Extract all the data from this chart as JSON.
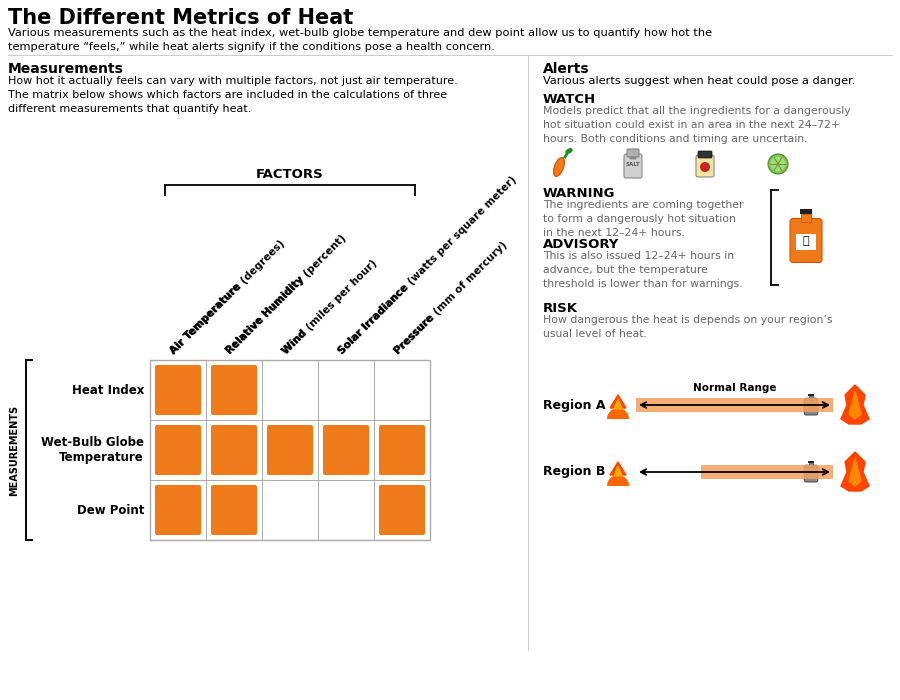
{
  "title": "The Different Metrics of Heat",
  "subtitle": "Various measurements such as the heat index, wet-bulb globe temperature and dew point allow us to quantify how hot the\ntemperature “feels,” while heat alerts signify if the conditions pose a health concern.",
  "measurements_header": "Measurements",
  "measurements_desc": "How hot it actually feels can vary with multiple factors, not just air temperature.\nThe matrix below shows which factors are included in the calculations of three\ndifferent measurements that quantify heat.",
  "factors_label": "FACTORS",
  "measurements_label": "MEASUREMENTS",
  "col_labels": [
    [
      "Air Temperature",
      "(degrees)"
    ],
    [
      "Relative Humidity",
      "(percent)"
    ],
    [
      "Wind",
      "(miles per hour)"
    ],
    [
      "Solar Irradiance",
      "(watts per square meter)"
    ],
    [
      "Pressure",
      "(mm of mercury)"
    ]
  ],
  "rows": [
    "Heat Index",
    "Wet-Bulb Globe\nTemperature",
    "Dew Point"
  ],
  "matrix": [
    [
      1,
      1,
      0,
      0,
      0
    ],
    [
      1,
      1,
      1,
      1,
      1
    ],
    [
      1,
      1,
      0,
      0,
      1
    ]
  ],
  "orange_color": "#F07A1A",
  "orange_bar": "#F5A060",
  "alerts_header": "Alerts",
  "alerts_desc": "Various alerts suggest when heat could pose a danger.",
  "watch_header": "WATCH",
  "watch_desc": "Models predict that all the ingredients for a dangerously\nhot situation could exist in an area in the next 24–72+\nhours. Both conditions and timing are uncertain.",
  "warning_header": "WARNING",
  "warning_desc": "The ingredients are coming together\nto form a dangerously hot situation\nin the next 12–24+ hours.",
  "advisory_header": "ADVISORY",
  "advisory_desc": "This is also issued 12–24+ hours in\nadvance, but the temperature\nthreshold is lower than for warnings.",
  "risk_header": "RISK",
  "risk_desc": "How dangerous the heat is depends on your region’s\nusual level of heat.",
  "region_a_label": "Region A",
  "region_b_label": "Region B",
  "normal_range_label": "Normal Range",
  "background_color": "#ffffff",
  "text_color": "#000000",
  "gray_text": "#666666",
  "grid_color": "#aaaaaa"
}
